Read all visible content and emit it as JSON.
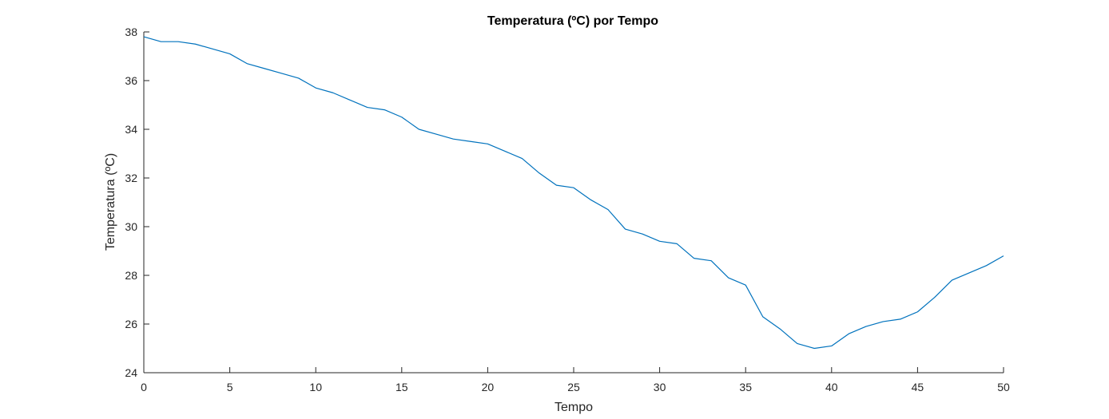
{
  "chart_data": {
    "type": "line",
    "title": "Temperatura (ºC) por Tempo",
    "xlabel": "Tempo",
    "ylabel": "Temperatura (ºC)",
    "xlim": [
      0,
      50
    ],
    "ylim": [
      24,
      38
    ],
    "xticks": [
      0,
      5,
      10,
      15,
      20,
      25,
      30,
      35,
      40,
      45,
      50
    ],
    "yticks": [
      24,
      26,
      28,
      30,
      32,
      34,
      36,
      38
    ],
    "grid": false,
    "line_color": "#0072BD",
    "x": [
      0,
      1,
      2,
      3,
      4,
      5,
      6,
      7,
      8,
      9,
      10,
      11,
      12,
      13,
      14,
      15,
      16,
      17,
      18,
      19,
      20,
      21,
      22,
      23,
      24,
      25,
      26,
      27,
      28,
      29,
      30,
      31,
      32,
      33,
      34,
      35,
      36,
      37,
      38,
      39,
      40,
      41,
      42,
      43,
      44,
      45,
      46,
      47,
      48,
      49,
      50
    ],
    "y": [
      37.8,
      37.6,
      37.6,
      37.5,
      37.3,
      37.1,
      36.7,
      36.5,
      36.3,
      36.1,
      35.7,
      35.5,
      35.2,
      34.9,
      34.8,
      34.5,
      34.0,
      33.8,
      33.6,
      33.5,
      33.4,
      33.1,
      32.8,
      32.2,
      31.7,
      31.6,
      31.1,
      30.7,
      29.9,
      29.7,
      29.4,
      29.3,
      28.7,
      28.6,
      27.9,
      27.6,
      26.3,
      25.8,
      25.2,
      25.0,
      25.1,
      25.6,
      25.9,
      26.1,
      26.2,
      26.5,
      27.1,
      27.8,
      28.1,
      28.4,
      28.8
    ]
  }
}
